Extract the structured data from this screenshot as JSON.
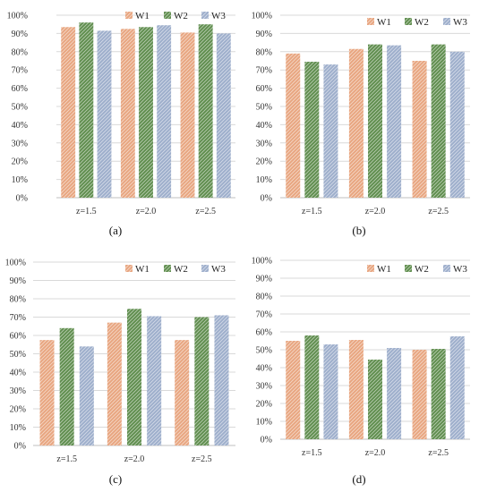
{
  "chart_data": [
    {
      "type": "bar",
      "label": "(a)",
      "categories": [
        "z=1.5",
        "z=2.0",
        "z=2.5"
      ],
      "series": [
        {
          "name": "W1",
          "values": [
            93.5,
            92.5,
            90.5
          ]
        },
        {
          "name": "W2",
          "values": [
            96,
            93.5,
            95
          ]
        },
        {
          "name": "W3",
          "values": [
            91.5,
            94.5,
            90
          ]
        }
      ],
      "ylim": [
        0,
        100
      ],
      "yticks": [
        "0%",
        "10%",
        "20%",
        "30%",
        "40%",
        "50%",
        "60%",
        "70%",
        "80%",
        "90%",
        "100%"
      ],
      "legend": "top-right"
    },
    {
      "type": "bar",
      "label": "(b)",
      "categories": [
        "z=1.5",
        "z=2.0",
        "z=2.5"
      ],
      "series": [
        {
          "name": "W1",
          "values": [
            79,
            81.5,
            75
          ]
        },
        {
          "name": "W2",
          "values": [
            74.5,
            84,
            84
          ]
        },
        {
          "name": "W3",
          "values": [
            73,
            83.5,
            80
          ]
        }
      ],
      "ylim": [
        0,
        100
      ],
      "yticks": [
        "0%",
        "10%",
        "20%",
        "30%",
        "40%",
        "50%",
        "60%",
        "70%",
        "80%",
        "90%",
        "100%"
      ],
      "legend": "top-right"
    },
    {
      "type": "bar",
      "label": "(c)",
      "categories": [
        "z=1.5",
        "z=2.0",
        "z=2.5"
      ],
      "series": [
        {
          "name": "W1",
          "values": [
            57.5,
            67,
            57.5
          ]
        },
        {
          "name": "W2",
          "values": [
            64,
            74.5,
            70
          ]
        },
        {
          "name": "W3",
          "values": [
            54,
            70.5,
            71
          ]
        }
      ],
      "ylim": [
        0,
        100
      ],
      "yticks": [
        "0%",
        "10%",
        "20%",
        "30%",
        "40%",
        "50%",
        "60%",
        "70%",
        "80%",
        "90%",
        "100%"
      ],
      "legend": "top-right"
    },
    {
      "type": "bar",
      "label": "(d)",
      "categories": [
        "z=1.5",
        "z=2.0",
        "z=2.5"
      ],
      "series": [
        {
          "name": "W1",
          "values": [
            55,
            55.5,
            50
          ]
        },
        {
          "name": "W2",
          "values": [
            58,
            44.5,
            50.5
          ]
        },
        {
          "name": "W3",
          "values": [
            53,
            51,
            57.5
          ]
        }
      ],
      "ylim": [
        0,
        100
      ],
      "yticks": [
        "0%",
        "10%",
        "20%",
        "30%",
        "40%",
        "50%",
        "60%",
        "70%",
        "80%",
        "90%",
        "100%"
      ],
      "legend": "top-right"
    }
  ],
  "colors": {
    "W1": "#e8a57f",
    "W2": "#5f8d4e",
    "W3": "#9daecb",
    "grid": "#d9d9d9",
    "axis": "#bfbfbf"
  }
}
